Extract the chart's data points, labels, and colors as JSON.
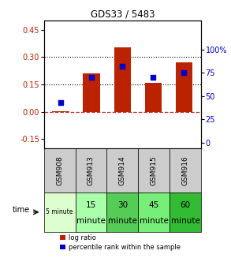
{
  "title": "GDS33 / 5483",
  "samples": [
    "GSM908",
    "GSM913",
    "GSM914",
    "GSM915",
    "GSM916"
  ],
  "log_ratios": [
    0.005,
    0.21,
    0.355,
    0.16,
    0.27
  ],
  "percentile_ranks": [
    43,
    70,
    82,
    70,
    75
  ],
  "ylim_left": [
    -0.2,
    0.5
  ],
  "ylim_right": [
    -6.25,
    131.25
  ],
  "yticks_left": [
    -0.15,
    0.0,
    0.15,
    0.3,
    0.45
  ],
  "yticks_right": [
    0,
    25,
    50,
    75,
    100
  ],
  "hlines": [
    0.15,
    0.3
  ],
  "bar_color": "#bb2200",
  "dot_color": "#0000cc",
  "zero_line_color": "#cc3333",
  "time_labels_row1": [
    "",
    "15",
    "30",
    "45",
    "60"
  ],
  "time_labels_row2": [
    "5 minute",
    "minute",
    "minute",
    "minute",
    "minute"
  ],
  "time_colors": [
    "#ddffd0",
    "#aaffaa",
    "#55cc55",
    "#77ee77",
    "#33bb33"
  ],
  "sample_bg": "#cccccc",
  "legend_bar_label": "log ratio",
  "legend_dot_label": "percentile rank within the sample"
}
